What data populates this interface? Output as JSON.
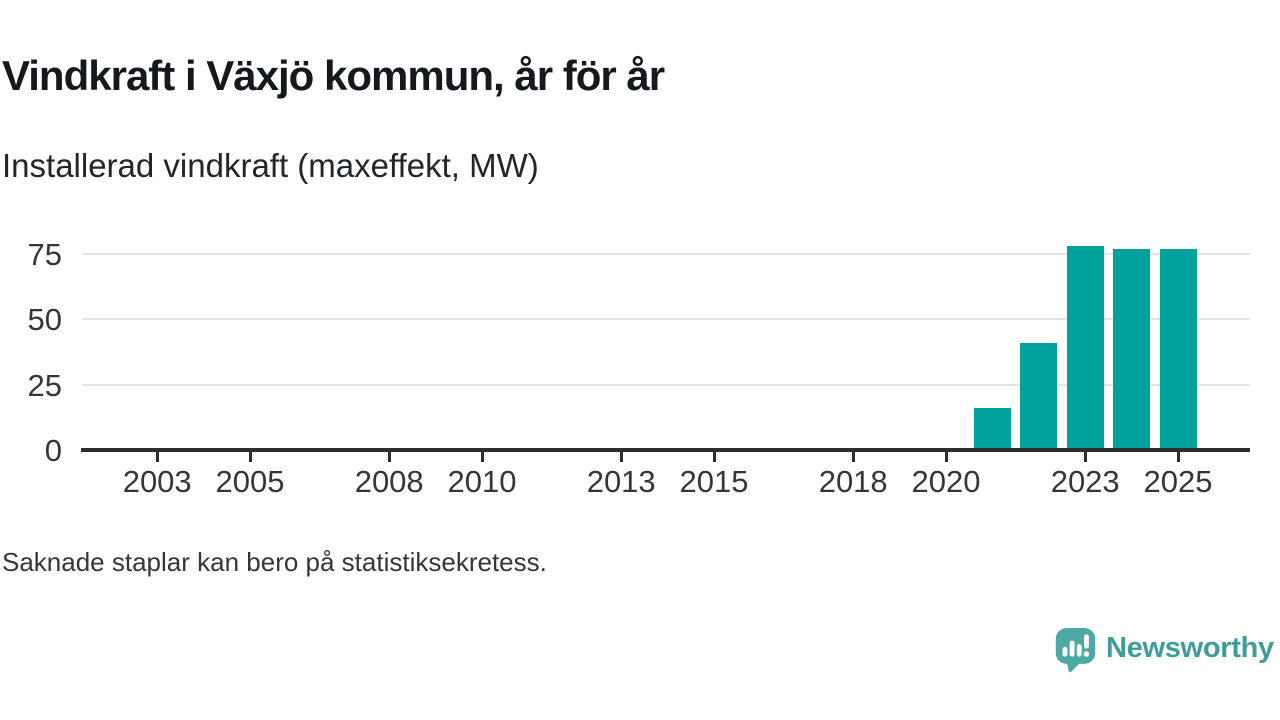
{
  "header": {
    "title": "Vindkraft i Växjö kommun, år för år",
    "subtitle": "Installerad vindkraft (maxeffekt, MW)"
  },
  "footer": {
    "note": "Saknade staplar kan bero på statistiksekretess."
  },
  "branding": {
    "name": "Newsworthy",
    "logo_icon": "newsworthy-speech-bubble-chart-icon",
    "bubble_color": "#4ea9a4",
    "text_color": "#3f9d99"
  },
  "chart_data": {
    "type": "bar",
    "title": "Vindkraft i Växjö kommun, år för år",
    "subtitle": "Installerad vindkraft (maxeffekt, MW)",
    "xlabel": "",
    "ylabel": "",
    "bar_color": "#00a29b",
    "grid": "horizontal-only",
    "legend": "none",
    "xlim": [
      2001.5,
      2026.5
    ],
    "ylim": [
      0,
      80
    ],
    "x_ticks": [
      2003,
      2005,
      2008,
      2010,
      2013,
      2015,
      2018,
      2020,
      2023,
      2025
    ],
    "y_ticks": [
      0,
      25,
      50,
      75
    ],
    "series": [
      {
        "name": "Installerad vindkraft (maxeffekt, MW)",
        "points": [
          {
            "year": 2021,
            "value": 16
          },
          {
            "year": 2022,
            "value": 41
          },
          {
            "year": 2023,
            "value": 78
          },
          {
            "year": 2024,
            "value": 77
          },
          {
            "year": 2025,
            "value": 77
          }
        ]
      }
    ]
  }
}
